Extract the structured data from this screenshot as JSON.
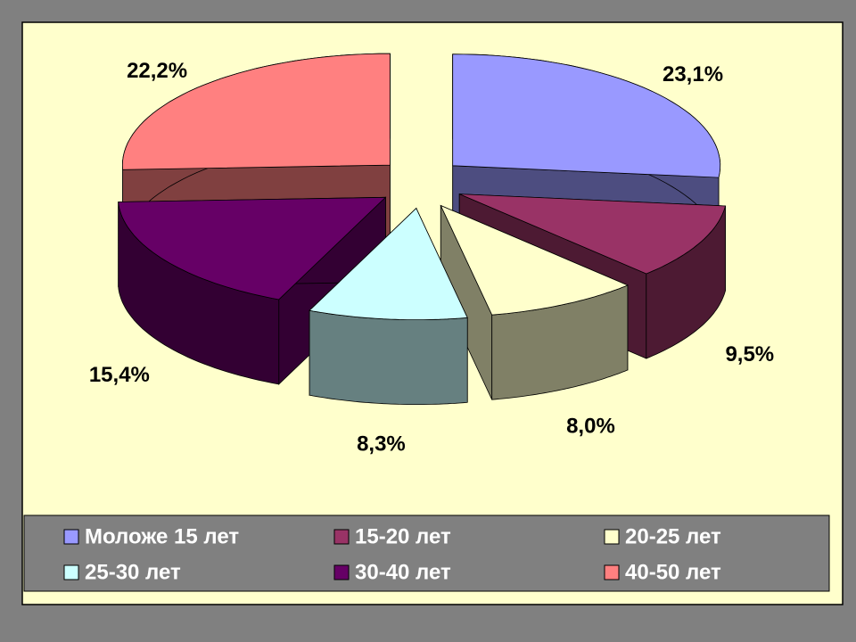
{
  "chart_data": {
    "type": "pie3d",
    "categories": [
      "Моложе 15 лет",
      "15-20 лет",
      "20-25 лет",
      "25-30 лет",
      "30-40 лет",
      "40-50 лет"
    ],
    "values": [
      23.1,
      9.5,
      8.0,
      8.3,
      15.4,
      22.2
    ],
    "value_labels": [
      "23,1%",
      "9,5%",
      "8,0%",
      "8,3%",
      "15,4%",
      "22,2%"
    ],
    "colors": [
      "#9999ff",
      "#993366",
      "#ffffcc",
      "#ccffff",
      "#660066",
      "#ff8080"
    ],
    "legend": "bottom"
  }
}
